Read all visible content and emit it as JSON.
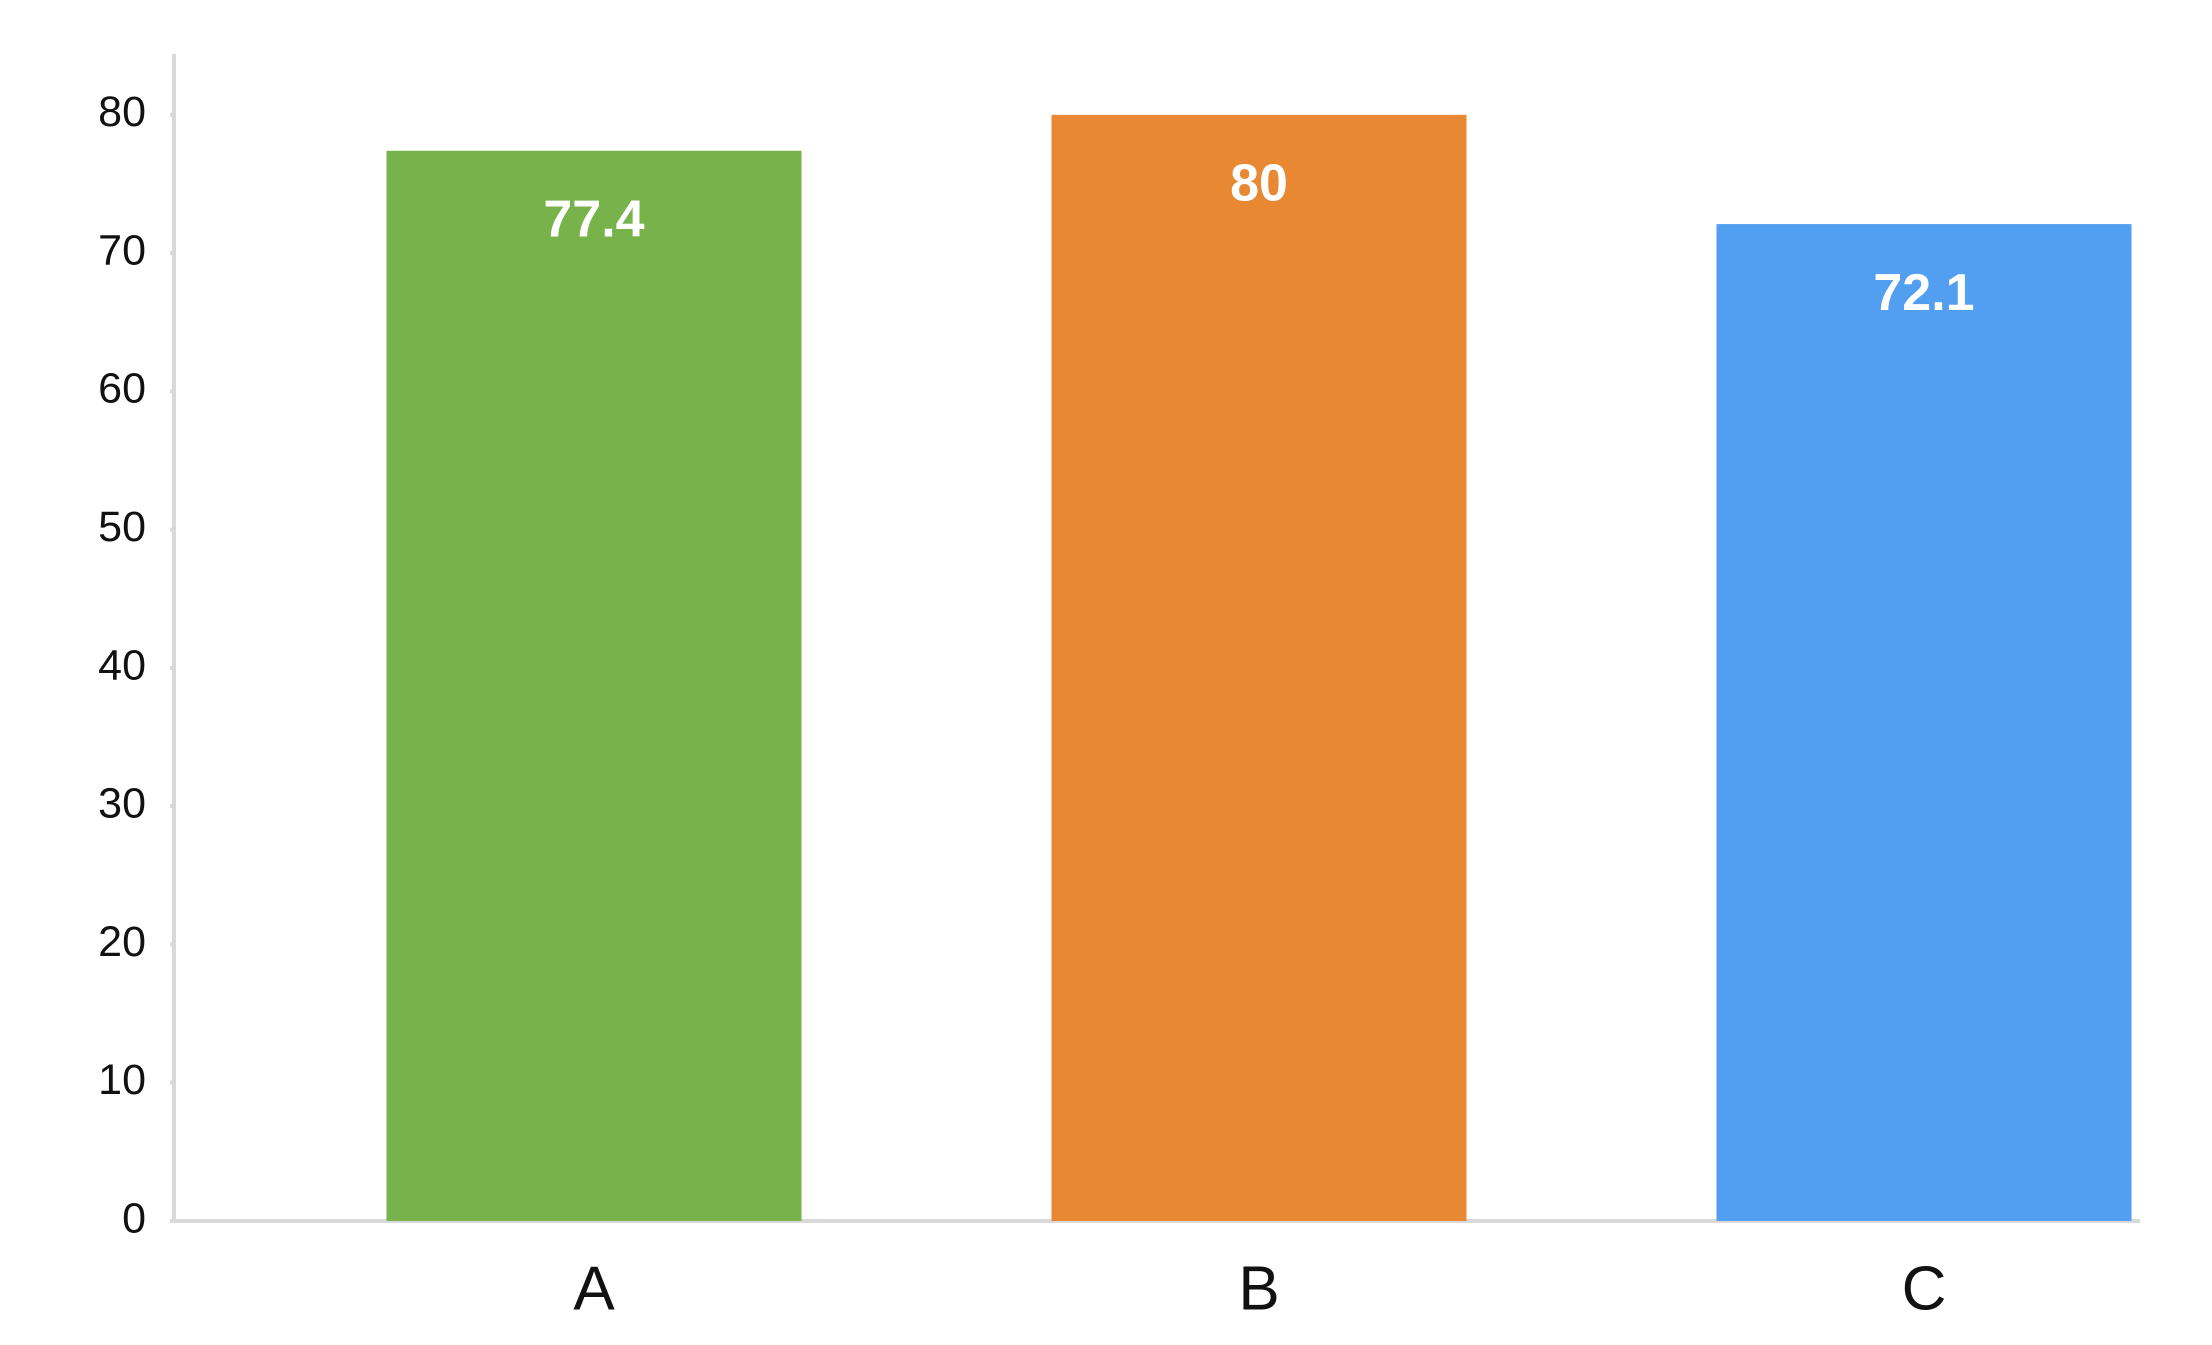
{
  "chart_data": {
    "type": "bar",
    "categories": [
      "A",
      "B",
      "C"
    ],
    "values": [
      77.4,
      80,
      72.1
    ],
    "colors": [
      "#77b24b",
      "#e88832",
      "#529ef0"
    ],
    "ylim": [
      0,
      84.4
    ],
    "yticks": [
      0,
      10,
      20,
      30,
      40,
      50,
      60,
      70,
      80
    ],
    "grid": false
  }
}
